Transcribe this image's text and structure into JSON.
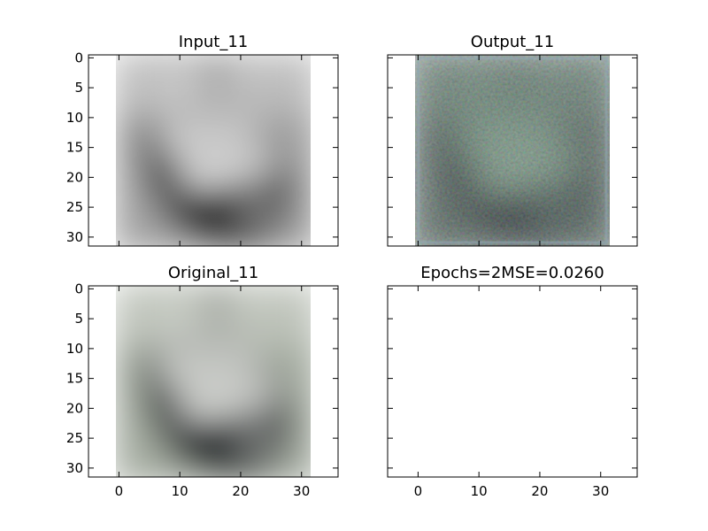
{
  "figure": {
    "panels": [
      {
        "title": "Input_11",
        "image": "boat-grayscale",
        "show_x_ticklabels": false,
        "show_y_ticklabels": true
      },
      {
        "title": "Output_11",
        "image": "boat-reconstruction",
        "show_x_ticklabels": false,
        "show_y_ticklabels": false
      },
      {
        "title": "Original_11",
        "image": "boat-color",
        "show_x_ticklabels": true,
        "show_y_ticklabels": true
      },
      {
        "title": "Epochs=2MSE=0.0260",
        "image": null,
        "show_x_ticklabels": true,
        "show_y_ticklabels": false
      }
    ]
  },
  "chart_data": {
    "type": "heatmap",
    "layout": "2x2 grid, shared axes",
    "xlim": [
      -5,
      36
    ],
    "ylim": [
      31.5,
      -0.5
    ],
    "x_ticks": [
      0,
      10,
      20,
      30
    ],
    "y_ticks": [
      0,
      5,
      10,
      15,
      20,
      25,
      30
    ],
    "image_extent": [
      -0.5,
      31.5,
      31.5,
      -0.5
    ],
    "image_size": [
      32,
      32
    ],
    "grid": false,
    "colors": {
      "grayscale_tint": "#9a9a9a",
      "original_tint": "#8f978d",
      "output_tint": "#4a5a55"
    }
  }
}
